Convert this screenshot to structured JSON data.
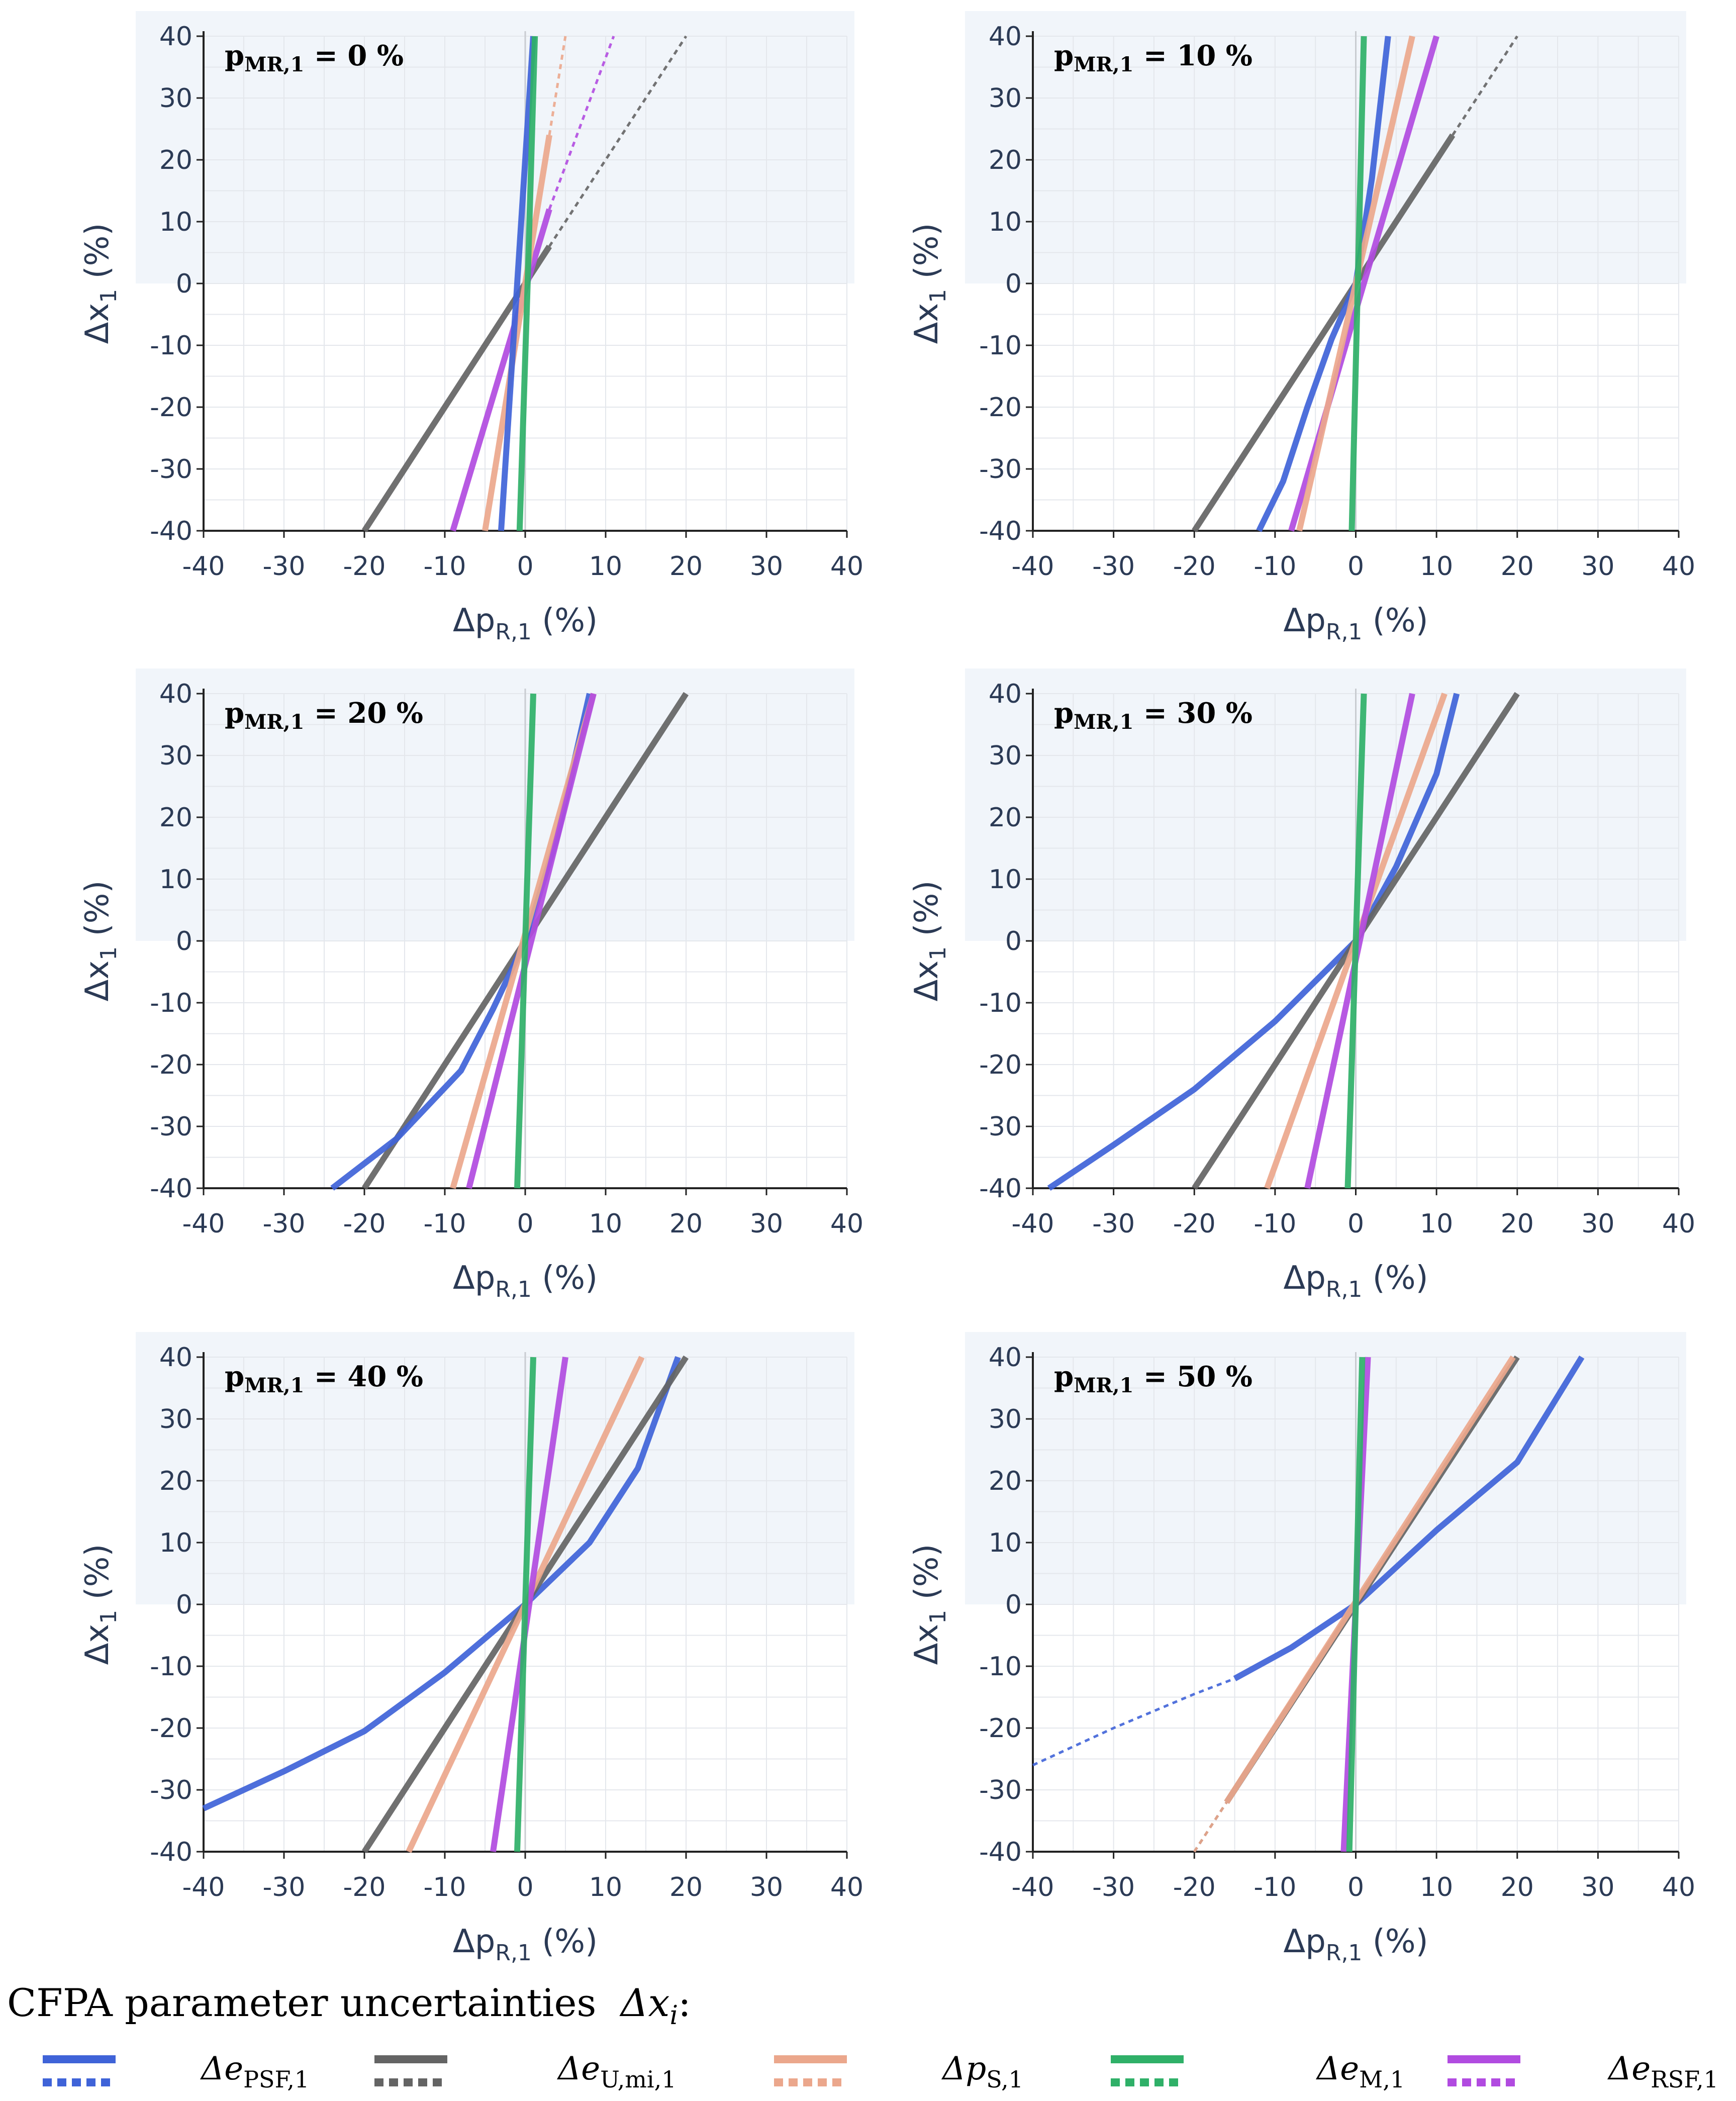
{
  "figure": {
    "legend_title": "CFPA parameter uncertainties",
    "legend_title_symbol": "Δx",
    "legend_title_subscript": "i",
    "legend_title_suffix": ":"
  },
  "legend": [
    {
      "key": "ePSF",
      "sym": "Δe",
      "sub": "PSF,1",
      "color": "#3f63d8"
    },
    {
      "key": "eUmi",
      "sym": "Δe",
      "sub": "U,mi,1",
      "color": "#646464"
    },
    {
      "key": "pS",
      "sym": "Δp",
      "sub": "S,1",
      "color": "#eba78c"
    },
    {
      "key": "eM",
      "sym": "Δe",
      "sub": "M,1",
      "color": "#2fb068"
    },
    {
      "key": "eRSF",
      "sym": "Δe",
      "sub": "RSF,1",
      "color": "#b14be0"
    }
  ],
  "chart_data": [
    {
      "type": "line",
      "title": "p_MR,1 = 0 %",
      "title_var": "p",
      "title_sub": "MR,1",
      "title_value": "= 0 %",
      "xlabel": "Δp",
      "xlabel_sub": "R,1",
      "xlabel_unit": "(%)",
      "ylabel": "Δx",
      "ylabel_sub": "1",
      "ylabel_unit": "(%)",
      "xlim": [
        -40,
        40
      ],
      "ylim": [
        -40,
        40
      ],
      "xticks": [
        "-40",
        "-30",
        "-20",
        "-10",
        "0",
        "10",
        "20",
        "30",
        "40"
      ],
      "yticks": [
        "40",
        "30",
        "20",
        "10",
        "0",
        "-10",
        "-20",
        "-30",
        "-40"
      ],
      "series": [
        {
          "name": "Δe_U,mi,1",
          "color": "#646464",
          "solid": [
            [
              -20,
              -40
            ],
            [
              3,
              6
            ]
          ],
          "dashed": [
            [
              3,
              6
            ],
            [
              20,
              40
            ]
          ]
        },
        {
          "name": "Δe_RSF,1",
          "color": "#b14be0",
          "solid": [
            [
              -9,
              -40
            ],
            [
              3,
              12
            ]
          ],
          "dashed": [
            [
              3,
              12
            ],
            [
              11,
              40
            ]
          ]
        },
        {
          "name": "Δp_S,1",
          "color": "#eba78c",
          "solid": [
            [
              -5,
              -40
            ],
            [
              3,
              24
            ]
          ],
          "dashed": [
            [
              3,
              24
            ],
            [
              5,
              40
            ]
          ]
        },
        {
          "name": "Δe_PSF,1",
          "color": "#3f63d8",
          "solid": [
            [
              -3,
              -40
            ],
            [
              1,
              40
            ]
          ],
          "dashed": []
        },
        {
          "name": "Δe_M,1",
          "color": "#2fb068",
          "solid": [
            [
              -0.7,
              -40
            ],
            [
              0.3,
              0
            ],
            [
              1.2,
              40
            ]
          ],
          "dashed": []
        }
      ]
    },
    {
      "type": "line",
      "title": "p_MR,1 = 10 %",
      "title_var": "p",
      "title_sub": "MR,1",
      "title_value": "= 10 %",
      "xlabel": "Δp",
      "xlabel_sub": "R,1",
      "xlabel_unit": "(%)",
      "ylabel": "Δx",
      "ylabel_sub": "1",
      "ylabel_unit": "(%)",
      "xlim": [
        -40,
        40
      ],
      "ylim": [
        -40,
        40
      ],
      "xticks": [
        "-40",
        "-30",
        "-20",
        "-10",
        "0",
        "10",
        "20",
        "30",
        "40"
      ],
      "yticks": [
        "40",
        "30",
        "20",
        "10",
        "0",
        "-10",
        "-20",
        "-30",
        "-40"
      ],
      "series": [
        {
          "name": "Δe_U,mi,1",
          "color": "#646464",
          "solid": [
            [
              -20,
              -40
            ],
            [
              12,
              24
            ]
          ],
          "dashed": [
            [
              12,
              24
            ],
            [
              20,
              40
            ]
          ]
        },
        {
          "name": "Δe_PSF,1",
          "color": "#3f63d8",
          "solid": [
            [
              -12,
              -40
            ],
            [
              -9,
              -32
            ],
            [
              -6,
              -20
            ],
            [
              -3,
              -9
            ],
            [
              0,
              0
            ],
            [
              2,
              17
            ],
            [
              4,
              40
            ]
          ],
          "dashed": []
        },
        {
          "name": "Δe_RSF,1",
          "color": "#b14be0",
          "solid": [
            [
              -8,
              -40
            ],
            [
              10,
              40
            ]
          ],
          "dashed": []
        },
        {
          "name": "Δp_S,1",
          "color": "#eba78c",
          "solid": [
            [
              -7,
              -40
            ],
            [
              7,
              40
            ]
          ],
          "dashed": []
        },
        {
          "name": "Δe_M,1",
          "color": "#2fb068",
          "solid": [
            [
              -0.5,
              -40
            ],
            [
              1,
              40
            ]
          ],
          "dashed": []
        }
      ]
    },
    {
      "type": "line",
      "title": "p_MR,1 = 20 %",
      "title_var": "p",
      "title_sub": "MR,1",
      "title_value": "= 20 %",
      "xlabel": "Δp",
      "xlabel_sub": "R,1",
      "xlabel_unit": "(%)",
      "ylabel": "Δx",
      "ylabel_sub": "1",
      "ylabel_unit": "(%)",
      "xlim": [
        -40,
        40
      ],
      "ylim": [
        -40,
        40
      ],
      "xticks": [
        "-40",
        "-30",
        "-20",
        "-10",
        "0",
        "10",
        "20",
        "30",
        "40"
      ],
      "yticks": [
        "40",
        "30",
        "20",
        "10",
        "0",
        "-10",
        "-20",
        "-30",
        "-40"
      ],
      "series": [
        {
          "name": "Δe_U,mi,1",
          "color": "#646464",
          "solid": [
            [
              -20,
              -40
            ],
            [
              20,
              40
            ]
          ],
          "dashed": []
        },
        {
          "name": "Δe_PSF,1",
          "color": "#3f63d8",
          "solid": [
            [
              -24,
              -40
            ],
            [
              -16,
              -32
            ],
            [
              -8,
              -21
            ],
            [
              -4,
              -11
            ],
            [
              0,
              0
            ],
            [
              4,
              17
            ],
            [
              8,
              40
            ]
          ],
          "dashed": []
        },
        {
          "name": "Δp_S,1",
          "color": "#eba78c",
          "solid": [
            [
              -9,
              -40
            ],
            [
              8.5,
              40
            ]
          ],
          "dashed": []
        },
        {
          "name": "Δe_RSF,1",
          "color": "#b14be0",
          "solid": [
            [
              -7,
              -40
            ],
            [
              8.5,
              40
            ]
          ],
          "dashed": []
        },
        {
          "name": "Δe_M,1",
          "color": "#2fb068",
          "solid": [
            [
              -1,
              -40
            ],
            [
              1,
              40
            ]
          ],
          "dashed": []
        }
      ]
    },
    {
      "type": "line",
      "title": "p_MR,1 = 30 %",
      "title_var": "p",
      "title_sub": "MR,1",
      "title_value": "= 30 %",
      "xlabel": "Δp",
      "xlabel_sub": "R,1",
      "xlabel_unit": "(%)",
      "ylabel": "Δx",
      "ylabel_sub": "1",
      "ylabel_unit": "(%)",
      "xlim": [
        -40,
        40
      ],
      "ylim": [
        -40,
        40
      ],
      "xticks": [
        "-40",
        "-30",
        "-20",
        "-10",
        "0",
        "10",
        "20",
        "30",
        "40"
      ],
      "yticks": [
        "40",
        "30",
        "20",
        "10",
        "0",
        "-10",
        "-20",
        "-30",
        "-40"
      ],
      "series": [
        {
          "name": "Δe_PSF,1",
          "color": "#3f63d8",
          "solid": [
            [
              -38,
              -40
            ],
            [
              -30,
              -33
            ],
            [
              -20,
              -24
            ],
            [
              -10,
              -13
            ],
            [
              0,
              0
            ],
            [
              5,
              12
            ],
            [
              10,
              27
            ],
            [
              12.5,
              40
            ]
          ],
          "dashed": []
        },
        {
          "name": "Δe_U,mi,1",
          "color": "#646464",
          "solid": [
            [
              -20,
              -40
            ],
            [
              20,
              40
            ]
          ],
          "dashed": []
        },
        {
          "name": "Δp_S,1",
          "color": "#eba78c",
          "solid": [
            [
              -11,
              -40
            ],
            [
              11,
              40
            ]
          ],
          "dashed": []
        },
        {
          "name": "Δe_RSF,1",
          "color": "#b14be0",
          "solid": [
            [
              -6,
              -40
            ],
            [
              7,
              40
            ]
          ],
          "dashed": []
        },
        {
          "name": "Δe_M,1",
          "color": "#2fb068",
          "solid": [
            [
              -1,
              -40
            ],
            [
              1,
              40
            ]
          ],
          "dashed": []
        }
      ]
    },
    {
      "type": "line",
      "title": "p_MR,1 = 40 %",
      "title_var": "p",
      "title_sub": "MR,1",
      "title_value": "= 40 %",
      "xlabel": "Δp",
      "xlabel_sub": "R,1",
      "xlabel_unit": "(%)",
      "ylabel": "Δx",
      "ylabel_sub": "1",
      "ylabel_unit": "(%)",
      "xlim": [
        -40,
        40
      ],
      "ylim": [
        -40,
        40
      ],
      "xticks": [
        "-40",
        "-30",
        "-20",
        "-10",
        "0",
        "10",
        "20",
        "30",
        "40"
      ],
      "yticks": [
        "40",
        "30",
        "20",
        "10",
        "0",
        "-10",
        "-20",
        "-30",
        "-40"
      ],
      "series": [
        {
          "name": "Δe_PSF,1",
          "color": "#3f63d8",
          "solid": [
            [
              -40,
              -33
            ],
            [
              -30,
              -27
            ],
            [
              -20,
              -20.5
            ],
            [
              -10,
              -11
            ],
            [
              0,
              0
            ],
            [
              8,
              10
            ],
            [
              14,
              22
            ],
            [
              19,
              40
            ]
          ],
          "dashed": []
        },
        {
          "name": "Δe_U,mi,1",
          "color": "#646464",
          "solid": [
            [
              -20,
              -40
            ],
            [
              20,
              40
            ]
          ],
          "dashed": []
        },
        {
          "name": "Δp_S,1",
          "color": "#eba78c",
          "solid": [
            [
              -14.5,
              -40
            ],
            [
              14.5,
              40
            ]
          ],
          "dashed": []
        },
        {
          "name": "Δe_RSF,1",
          "color": "#b14be0",
          "solid": [
            [
              -4,
              -40
            ],
            [
              5,
              40
            ]
          ],
          "dashed": []
        },
        {
          "name": "Δe_M,1",
          "color": "#2fb068",
          "solid": [
            [
              -1,
              -40
            ],
            [
              1,
              40
            ]
          ],
          "dashed": []
        }
      ]
    },
    {
      "type": "line",
      "title": "p_MR,1 = 50 %",
      "title_var": "p",
      "title_sub": "MR,1",
      "title_value": "= 50 %",
      "xlabel": "Δp",
      "xlabel_sub": "R,1",
      "xlabel_unit": "(%)",
      "ylabel": "Δx",
      "ylabel_sub": "1",
      "ylabel_unit": "(%)",
      "xlim": [
        -40,
        40
      ],
      "ylim": [
        -40,
        40
      ],
      "xticks": [
        "-40",
        "-30",
        "-20",
        "-10",
        "0",
        "10",
        "20",
        "30",
        "40"
      ],
      "yticks": [
        "40",
        "30",
        "20",
        "10",
        "0",
        "-10",
        "-20",
        "-30",
        "-40"
      ],
      "series": [
        {
          "name": "Δe_PSF,1",
          "color": "#3f63d8",
          "solid": [
            [
              -15,
              -12
            ],
            [
              -8,
              -7
            ],
            [
              0,
              0
            ],
            [
              10,
              12
            ],
            [
              20,
              23
            ],
            [
              28,
              40
            ]
          ],
          "dashed": [
            [
              -40,
              -26
            ],
            [
              -30,
              -20
            ],
            [
              -20,
              -14.5
            ],
            [
              -15,
              -12
            ]
          ]
        },
        {
          "name": "Δe_U,mi,1",
          "color": "#646464",
          "solid": [
            [
              -16,
              -32
            ],
            [
              20,
              40
            ]
          ],
          "dashed": [
            [
              -20,
              -40
            ],
            [
              -16,
              -32
            ]
          ]
        },
        {
          "name": "Δp_S,1",
          "color": "#eba78c",
          "solid": [
            [
              -16,
              -32
            ],
            [
              19.5,
              40
            ]
          ],
          "dashed": [
            [
              -20,
              -40
            ],
            [
              -16,
              -32
            ]
          ]
        },
        {
          "name": "Δe_RSF,1",
          "color": "#b14be0",
          "solid": [
            [
              -1.5,
              -40
            ],
            [
              1.5,
              40
            ]
          ],
          "dashed": []
        },
        {
          "name": "Δe_M,1",
          "color": "#2fb068",
          "solid": [
            [
              -0.8,
              -40
            ],
            [
              0.8,
              40
            ]
          ],
          "dashed": []
        }
      ]
    }
  ]
}
